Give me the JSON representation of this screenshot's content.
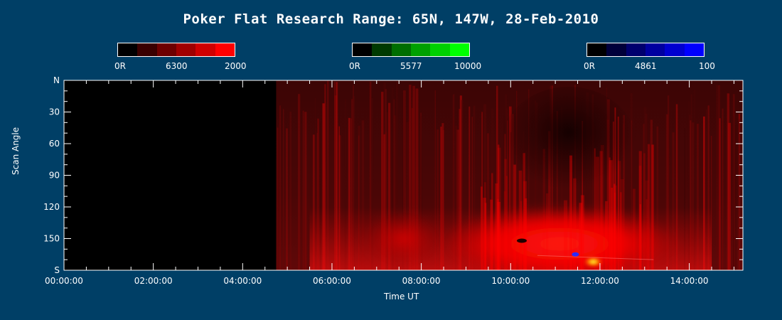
{
  "chart_data": {
    "type": "heatmap",
    "title": "Poker Flat Research Range: 65N, 147W, 28-Feb-2010",
    "xlabel": "Time UT",
    "ylabel": "Scan Angle",
    "x_ticks": [
      "00:00:00",
      "02:00:00",
      "04:00:00",
      "06:00:00",
      "08:00:00",
      "10:00:00",
      "12:00:00",
      "14:00:00"
    ],
    "x_range_hours": [
      0,
      15.2
    ],
    "y_ticks": [
      "N",
      "30",
      "60",
      "90",
      "120",
      "150",
      "S"
    ],
    "y_range_deg": [
      0,
      180
    ],
    "data_start_hours": 4.75,
    "colorbars": [
      {
        "wavelength": "6300",
        "min_label": "0R",
        "max_label": "2000",
        "colors": [
          "#000000",
          "#3a0000",
          "#6e0000",
          "#a00000",
          "#d00000",
          "#ff0000"
        ]
      },
      {
        "wavelength": "5577",
        "min_label": "0R",
        "max_label": "10000",
        "colors": [
          "#000000",
          "#003a00",
          "#006e00",
          "#00a000",
          "#00d000",
          "#00ff00"
        ]
      },
      {
        "wavelength": "4861",
        "min_label": "0R",
        "max_label": "100",
        "colors": [
          "#000000",
          "#00003a",
          "#00006e",
          "#0000a0",
          "#0000d0",
          "#0000ff"
        ]
      }
    ]
  }
}
